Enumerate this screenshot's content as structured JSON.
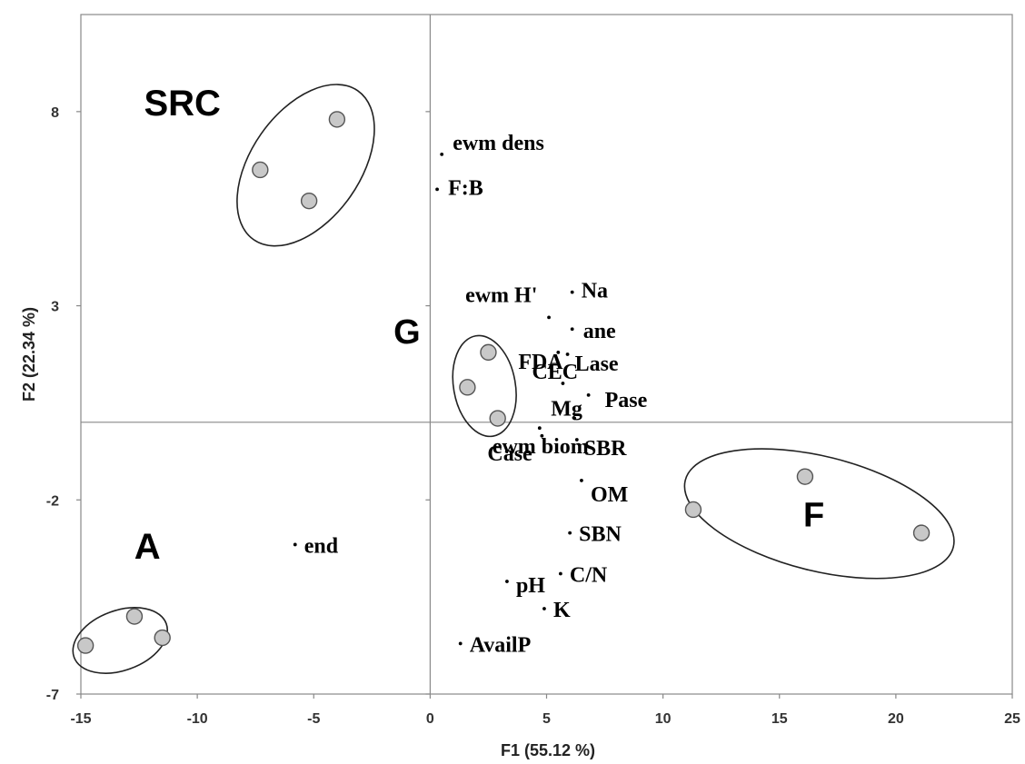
{
  "chart_data": {
    "type": "scatter",
    "xlabel": "F1 (55.12 %)",
    "ylabel": "F2 (22.34 %)",
    "xlim": [
      -15,
      25
    ],
    "ylim": [
      -7,
      10.5
    ],
    "xticks": [
      -15,
      -10,
      -5,
      0,
      5,
      10,
      15,
      20,
      25
    ],
    "xtick_labels": [
      "-15",
      "-10",
      "-5",
      "0",
      "5",
      "10",
      "15",
      "20",
      "25"
    ],
    "yticks": [
      -7,
      -2,
      3,
      8
    ],
    "ytick_labels": [
      "-7",
      "-2",
      "3",
      "8"
    ],
    "grid": false,
    "reference_lines": {
      "x": 0,
      "y": 0
    },
    "variables": [
      {
        "label": "ewm dens",
        "x": 0.5,
        "y": 6.9
      },
      {
        "label": "F:B",
        "x": 0.3,
        "y": 6.0
      },
      {
        "label": "Na",
        "x": 6.1,
        "y": 3.35
      },
      {
        "label": "ewm H'",
        "x": 5.1,
        "y": 2.7
      },
      {
        "label": "ane",
        "x": 6.1,
        "y": 2.4
      },
      {
        "label": "FDA",
        "x": 5.5,
        "y": 1.8
      },
      {
        "label": "Lase",
        "x": 5.9,
        "y": 1.75
      },
      {
        "label": "CEC",
        "x": 5.7,
        "y": 1.0
      },
      {
        "label": "Pase",
        "x": 6.8,
        "y": 0.7
      },
      {
        "label": "Mg",
        "x": 6.2,
        "y": 0.1
      },
      {
        "label": "ewm biom",
        "x": 4.7,
        "y": -0.15
      },
      {
        "label": "SBR",
        "x": 6.3,
        "y": -0.45
      },
      {
        "label": "Case",
        "x": 4.8,
        "y": -0.35
      },
      {
        "label": "OM",
        "x": 6.5,
        "y": -1.5
      },
      {
        "label": "SBN",
        "x": 6.0,
        "y": -2.85
      },
      {
        "label": "end",
        "x": -5.8,
        "y": -3.15
      },
      {
        "label": "C/N",
        "x": 5.6,
        "y": -3.9
      },
      {
        "label": "pH",
        "x": 3.3,
        "y": -4.1
      },
      {
        "label": "K",
        "x": 4.9,
        "y": -4.8
      },
      {
        "label": "AvailP",
        "x": 1.3,
        "y": -5.7
      }
    ],
    "groups": [
      {
        "name": "SRC",
        "points": [
          {
            "x": -4.0,
            "y": 7.8
          },
          {
            "x": -7.3,
            "y": 6.5
          },
          {
            "x": -5.2,
            "y": 5.7
          }
        ]
      },
      {
        "name": "G",
        "points": [
          {
            "x": 2.5,
            "y": 1.8
          },
          {
            "x": 1.6,
            "y": 0.9
          },
          {
            "x": 2.9,
            "y": 0.1
          }
        ]
      },
      {
        "name": "F",
        "points": [
          {
            "x": 16.1,
            "y": -1.4
          },
          {
            "x": 11.3,
            "y": -2.25
          },
          {
            "x": 21.1,
            "y": -2.85
          }
        ]
      },
      {
        "name": "A",
        "points": [
          {
            "x": -12.7,
            "y": -5.0
          },
          {
            "x": -11.5,
            "y": -5.55
          },
          {
            "x": -14.8,
            "y": -5.75
          }
        ]
      }
    ],
    "colors": {
      "group_point_fill": "#c8c8c8",
      "group_point_stroke": "#555555",
      "ellipse_stroke": "#222222",
      "axis": "#888888"
    }
  }
}
